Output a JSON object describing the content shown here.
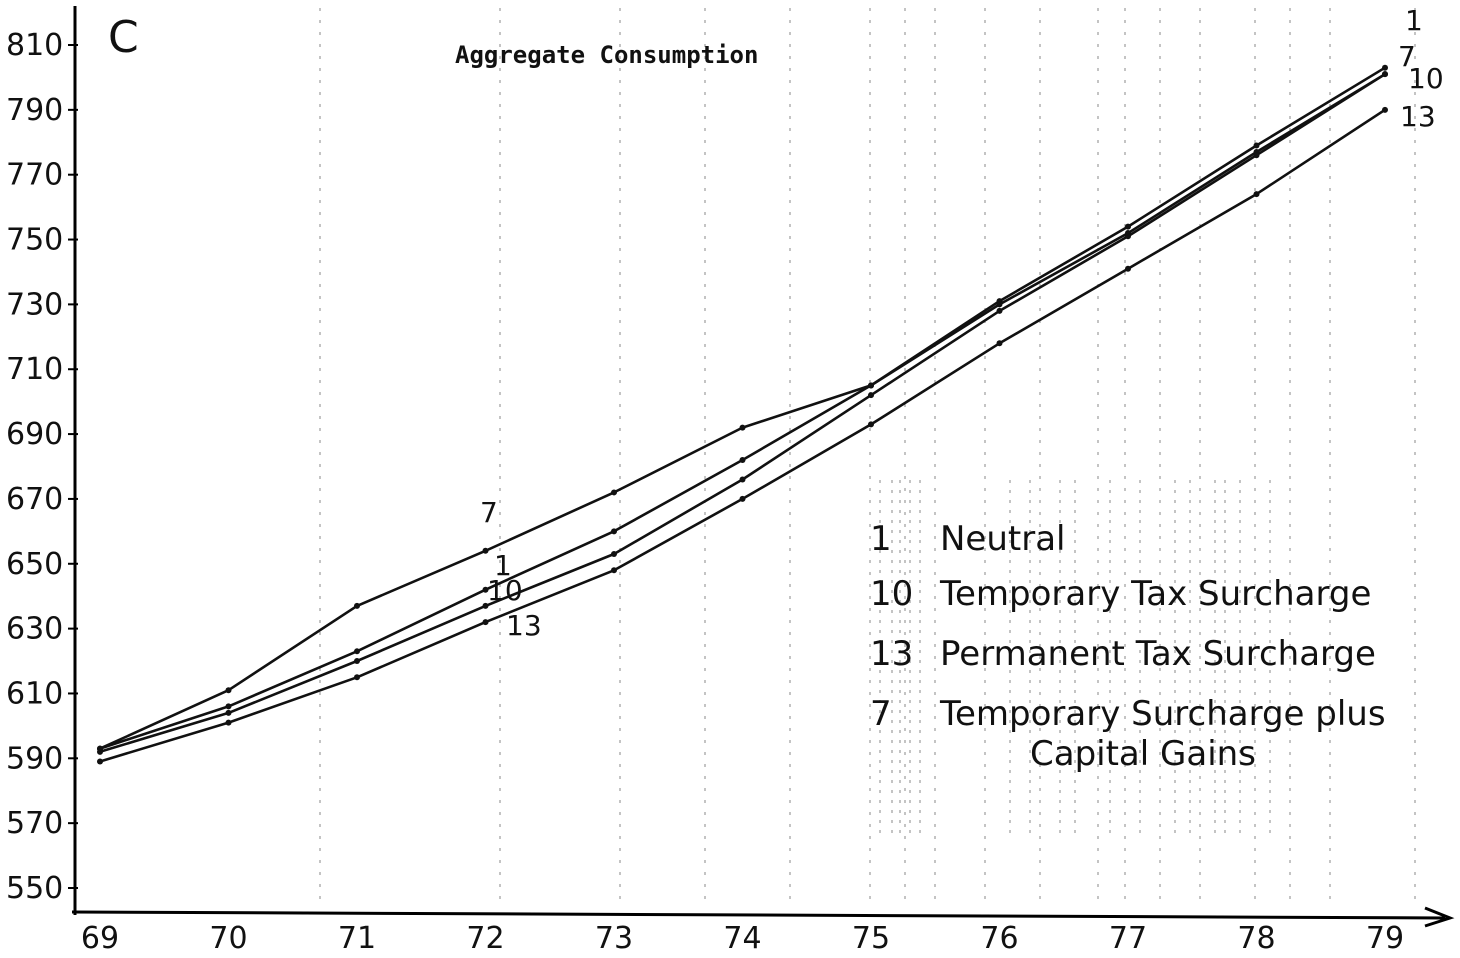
{
  "chart_data": {
    "type": "line",
    "panel_letter": "C",
    "title": "Aggregate Consumption",
    "xlabel": "",
    "ylabel": "",
    "x": [
      69,
      70,
      71,
      72,
      73,
      74,
      75,
      76,
      77,
      78,
      79
    ],
    "x_tick_labels": [
      "69",
      "70",
      "71",
      "72",
      "73",
      "74",
      "75",
      "76",
      "77",
      "78",
      "79"
    ],
    "y_tick_labels": [
      "550",
      "570",
      "590",
      "610",
      "630",
      "650",
      "670",
      "690",
      "710",
      "730",
      "750",
      "770",
      "790",
      "810"
    ],
    "ylim": [
      550,
      810
    ],
    "grid": "dotted vertical lines",
    "series": [
      {
        "label": "1",
        "values": [
          593,
          606,
          623,
          642,
          660,
          682,
          705,
          731,
          754,
          779,
          803
        ]
      },
      {
        "label": "7",
        "values": [
          593,
          611,
          637,
          654,
          672,
          692,
          705,
          730,
          752,
          777,
          801
        ]
      },
      {
        "label": "10",
        "values": [
          592,
          604,
          620,
          637,
          653,
          676,
          702,
          728,
          751,
          776,
          801
        ]
      },
      {
        "label": "13",
        "values": [
          589,
          601,
          615,
          632,
          648,
          670,
          693,
          718,
          741,
          764,
          790
        ]
      }
    ],
    "legend": {
      "placement": "center-right",
      "entries": [
        {
          "number": "1",
          "text": "Neutral"
        },
        {
          "number": "10",
          "text": "Temporary Tax Surcharge"
        },
        {
          "number": "13",
          "text": "Permanent Tax Surcharge"
        },
        {
          "number": "7",
          "text": "Temporary Surcharge plus",
          "text2": "Capital Gains"
        }
      ]
    }
  }
}
